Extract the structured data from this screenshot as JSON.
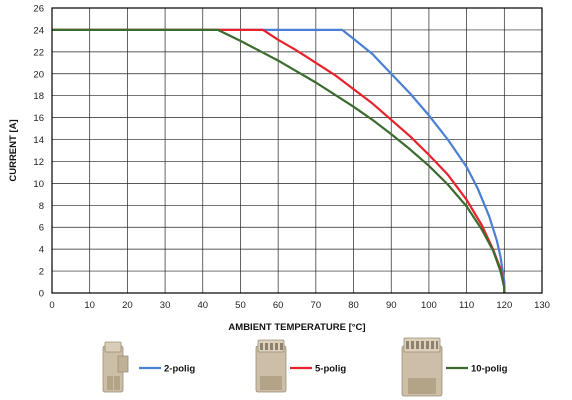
{
  "chart_data": {
    "type": "line",
    "xlabel": "AMBIENT TEMPERATURE [°C]",
    "ylabel": "CURRENT [A]",
    "xlim": [
      0,
      130
    ],
    "ylim": [
      0,
      26
    ],
    "x_ticks": [
      0,
      10,
      20,
      30,
      40,
      50,
      60,
      70,
      80,
      90,
      100,
      110,
      120,
      130
    ],
    "y_ticks": [
      0,
      2,
      4,
      6,
      8,
      10,
      12,
      14,
      16,
      18,
      20,
      22,
      24,
      26
    ],
    "grid": true,
    "legend_position": "bottom",
    "series": [
      {
        "name": "2-polig",
        "color": "#4a7fd4",
        "points": [
          [
            0,
            24
          ],
          [
            77,
            24
          ],
          [
            80,
            23.2
          ],
          [
            85,
            21.8
          ],
          [
            90,
            20.0
          ],
          [
            95,
            18.2
          ],
          [
            100,
            16.2
          ],
          [
            105,
            14.0
          ],
          [
            110,
            11.5
          ],
          [
            113,
            9.5
          ],
          [
            116,
            7.0
          ],
          [
            118,
            4.8
          ],
          [
            119,
            3.3
          ],
          [
            120,
            1.0
          ],
          [
            120,
            0
          ]
        ]
      },
      {
        "name": "5-polig",
        "color": "#e8222a",
        "points": [
          [
            0,
            24
          ],
          [
            56,
            24
          ],
          [
            60,
            23.1
          ],
          [
            65,
            22.1
          ],
          [
            70,
            21.0
          ],
          [
            75,
            19.9
          ],
          [
            80,
            18.6
          ],
          [
            85,
            17.3
          ],
          [
            90,
            15.8
          ],
          [
            95,
            14.3
          ],
          [
            100,
            12.6
          ],
          [
            105,
            10.8
          ],
          [
            110,
            8.5
          ],
          [
            114,
            6.2
          ],
          [
            117,
            4.0
          ],
          [
            119,
            2.2
          ],
          [
            120,
            0.5
          ],
          [
            120,
            0
          ]
        ]
      },
      {
        "name": "10-polig",
        "color": "#3c6b2f",
        "points": [
          [
            0,
            24
          ],
          [
            44,
            24
          ],
          [
            50,
            23.0
          ],
          [
            55,
            22.1
          ],
          [
            60,
            21.2
          ],
          [
            65,
            20.2
          ],
          [
            70,
            19.2
          ],
          [
            75,
            18.1
          ],
          [
            80,
            17.0
          ],
          [
            85,
            15.8
          ],
          [
            90,
            14.5
          ],
          [
            95,
            13.1
          ],
          [
            100,
            11.6
          ],
          [
            105,
            9.9
          ],
          [
            110,
            7.9
          ],
          [
            114,
            5.8
          ],
          [
            117,
            3.9
          ],
          [
            119,
            2.0
          ],
          [
            120,
            0.5
          ],
          [
            120,
            0
          ]
        ]
      }
    ]
  }
}
